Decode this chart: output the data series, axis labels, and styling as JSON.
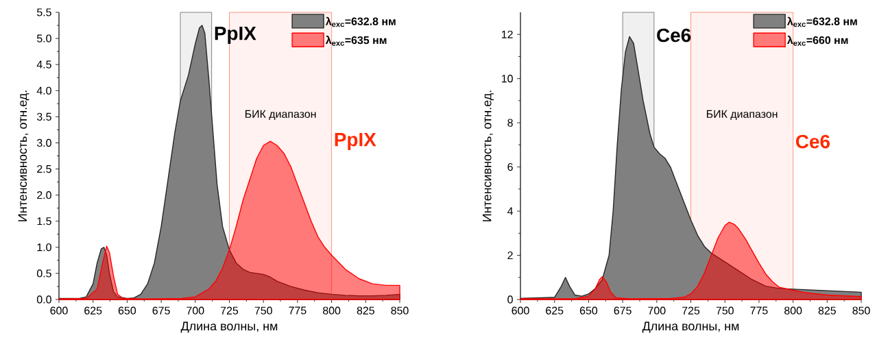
{
  "chart_data": [
    {
      "type": "area",
      "xlabel": "Длина волны, нм",
      "ylabel": "Интенсивность, отн.ед.",
      "xlim": [
        600,
        850
      ],
      "ylim": [
        0,
        5.5
      ],
      "xticks": [
        600,
        625,
        650,
        675,
        700,
        725,
        750,
        775,
        800,
        825,
        850
      ],
      "yticks": [
        {
          "value": 0,
          "label": "0.0"
        },
        {
          "value": 0.5,
          "label": "0.5"
        },
        {
          "value": 1,
          "label": "1.0"
        },
        {
          "value": 1.5,
          "label": "1.5"
        },
        {
          "value": 2,
          "label": "2.0"
        },
        {
          "value": 2.5,
          "label": "2.5"
        },
        {
          "value": 3,
          "label": "3.0"
        },
        {
          "value": 3.5,
          "label": "3.5"
        },
        {
          "value": 4,
          "label": "4.0"
        },
        {
          "value": 4.5,
          "label": "4.5"
        },
        {
          "value": 5,
          "label": "5.0"
        },
        {
          "value": 5.5,
          "label": "5.5"
        }
      ],
      "legend": "top right",
      "series": [
        {
          "name": "λ$_{exc}$=632.8 нм",
          "color": "#808080",
          "x": [
            600,
            615,
            620,
            625,
            628,
            631,
            633,
            635,
            637,
            640,
            643,
            650,
            655,
            660,
            665,
            670,
            675,
            680,
            685,
            689,
            695,
            700,
            703,
            705,
            707,
            710,
            713,
            716,
            720,
            725,
            730,
            735,
            740,
            750,
            755,
            760,
            770,
            780,
            790,
            800,
            810,
            820,
            830,
            840,
            850
          ],
          "values": [
            0.02,
            0.02,
            0.05,
            0.3,
            0.7,
            0.97,
            1.0,
            0.85,
            0.5,
            0.15,
            0.05,
            0.02,
            0.03,
            0.1,
            0.3,
            0.7,
            1.4,
            2.3,
            3.2,
            3.8,
            4.3,
            4.9,
            5.2,
            5.25,
            5.1,
            4.2,
            3.2,
            2.2,
            1.4,
            0.95,
            0.7,
            0.58,
            0.52,
            0.48,
            0.43,
            0.35,
            0.25,
            0.18,
            0.13,
            0.1,
            0.08,
            0.07,
            0.07,
            0.08,
            0.1
          ]
        },
        {
          "name": "λ$_{exc}$=635 нм",
          "color": "#ff0000",
          "x": [
            600,
            620,
            628,
            632,
            635,
            637,
            640,
            643,
            647,
            660,
            690,
            700,
            710,
            715,
            720,
            725,
            730,
            735,
            740,
            745,
            750,
            755,
            760,
            765,
            770,
            775,
            780,
            785,
            790,
            795,
            800,
            810,
            820,
            830,
            840,
            850
          ],
          "values": [
            0.01,
            0.02,
            0.2,
            0.7,
            1.02,
            0.9,
            0.45,
            0.1,
            0.02,
            0.01,
            0.02,
            0.05,
            0.2,
            0.35,
            0.6,
            0.95,
            1.4,
            1.9,
            2.3,
            2.7,
            2.95,
            3.03,
            2.95,
            2.8,
            2.55,
            2.2,
            1.85,
            1.5,
            1.2,
            1.0,
            0.85,
            0.58,
            0.4,
            0.3,
            0.27,
            0.27
          ]
        }
      ],
      "bands": [
        {
          "axis": "x",
          "from": 689,
          "to": 712,
          "color": "#000000"
        },
        {
          "axis": "x",
          "from": 725,
          "to": 800,
          "color": "#ff2a00",
          "label": "БИК диапазон"
        }
      ],
      "annotations": [
        "PpIX",
        "PpIX"
      ]
    },
    {
      "type": "area",
      "xlabel": "Длина волны, нм",
      "ylabel": "Интенсивность, отн.ед.",
      "xlim": [
        600,
        850
      ],
      "ylim": [
        0,
        13
      ],
      "xticks": [
        600,
        625,
        650,
        675,
        700,
        725,
        750,
        775,
        800,
        825,
        850
      ],
      "yticks": [
        0,
        2,
        4,
        6,
        8,
        10,
        12
      ],
      "legend": "top right",
      "series": [
        {
          "name": "λ$_{exc}$=632.8 нм",
          "color": "#808080",
          "x": [
            600,
            615,
            625,
            630,
            633,
            636,
            640,
            645,
            650,
            655,
            660,
            665,
            668,
            671,
            674,
            677,
            680,
            683,
            686,
            690,
            695,
            698,
            702,
            706,
            710,
            715,
            720,
            725,
            730,
            735,
            740,
            750,
            760,
            770,
            780,
            790,
            800,
            825,
            850
          ],
          "values": [
            0.05,
            0.08,
            0.1,
            0.6,
            1.0,
            0.6,
            0.2,
            0.15,
            0.25,
            0.5,
            0.9,
            2,
            4,
            7,
            9.5,
            11.2,
            11.9,
            11.6,
            10.5,
            9.0,
            7.5,
            6.9,
            6.6,
            6.4,
            6.0,
            5.2,
            4.4,
            3.6,
            2.9,
            2.4,
            2.1,
            1.7,
            1.3,
            0.9,
            0.6,
            0.5,
            0.47,
            0.4,
            0.33
          ]
        },
        {
          "name": "λ$_{exc}$=660 нм",
          "color": "#ff0000",
          "x": [
            600,
            640,
            650,
            655,
            658,
            660,
            663,
            666,
            670,
            680,
            710,
            720,
            725,
            730,
            735,
            740,
            745,
            750,
            753,
            757,
            760,
            765,
            770,
            775,
            780,
            785,
            790,
            800,
            810,
            825,
            850
          ],
          "values": [
            0.03,
            0.03,
            0.15,
            0.5,
            0.9,
            1.03,
            0.8,
            0.35,
            0.08,
            0.03,
            0.05,
            0.1,
            0.25,
            0.6,
            1.2,
            2.0,
            2.8,
            3.35,
            3.5,
            3.4,
            3.2,
            2.75,
            2.2,
            1.65,
            1.15,
            0.8,
            0.55,
            0.42,
            0.3,
            0.2,
            0.13
          ]
        }
      ],
      "bands": [
        {
          "axis": "x",
          "from": 675,
          "to": 698,
          "color": "#000000"
        },
        {
          "axis": "x",
          "from": 725,
          "to": 800,
          "color": "#ff2a00",
          "label": "БИК диапазон"
        }
      ],
      "annotations": [
        "Ce6",
        "Ce6"
      ]
    }
  ]
}
